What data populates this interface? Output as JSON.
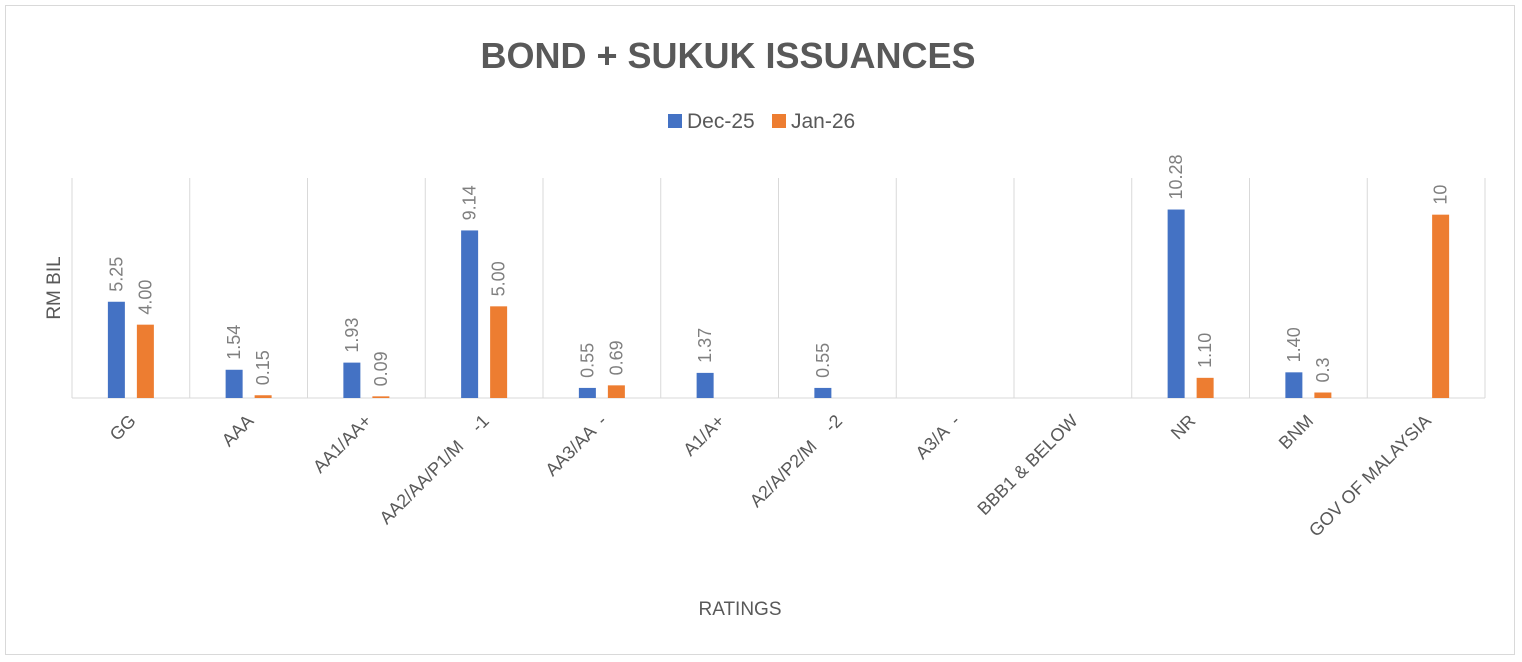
{
  "chart_data": {
    "type": "bar",
    "title": "BOND + SUKUK ISSUANCES",
    "xlabel": "RATINGS",
    "ylabel": "RM BIL",
    "categories": [
      "GG",
      "AAA",
      "AA1/AA+",
      "AA2/AA/P1/M    -1",
      "AA3/AA  -",
      "A1/A+",
      "A2/A/P2/M    -2",
      "A3/A  -",
      "BBB1 & BELOW",
      "NR",
      "BNM",
      "GOV OF MALAYSIA"
    ],
    "series": [
      {
        "name": "Dec-25",
        "color": "#4472c4",
        "values": [
          5.25,
          1.54,
          1.93,
          9.14,
          0.55,
          1.37,
          0.55,
          null,
          null,
          10.28,
          1.4,
          null
        ],
        "labels": [
          "5.25",
          "1.54",
          "1.93",
          "9.14",
          "0.55",
          "1.37",
          "0.55",
          "",
          "",
          "10.28",
          "1.40",
          ""
        ]
      },
      {
        "name": "Jan-26",
        "color": "#ed7d31",
        "values": [
          4.0,
          0.15,
          0.09,
          5.0,
          0.69,
          null,
          null,
          null,
          null,
          1.1,
          0.3,
          10
        ],
        "labels": [
          "4.00",
          "0.15",
          "0.09",
          "5.00",
          "0.69",
          "",
          "",
          "",
          "",
          "1.10",
          "0.3",
          "10"
        ]
      }
    ],
    "ylim": [
      0,
      12
    ],
    "y_axis_visible": false,
    "grid": "vertical category separators",
    "legend_position": "top-center"
  }
}
